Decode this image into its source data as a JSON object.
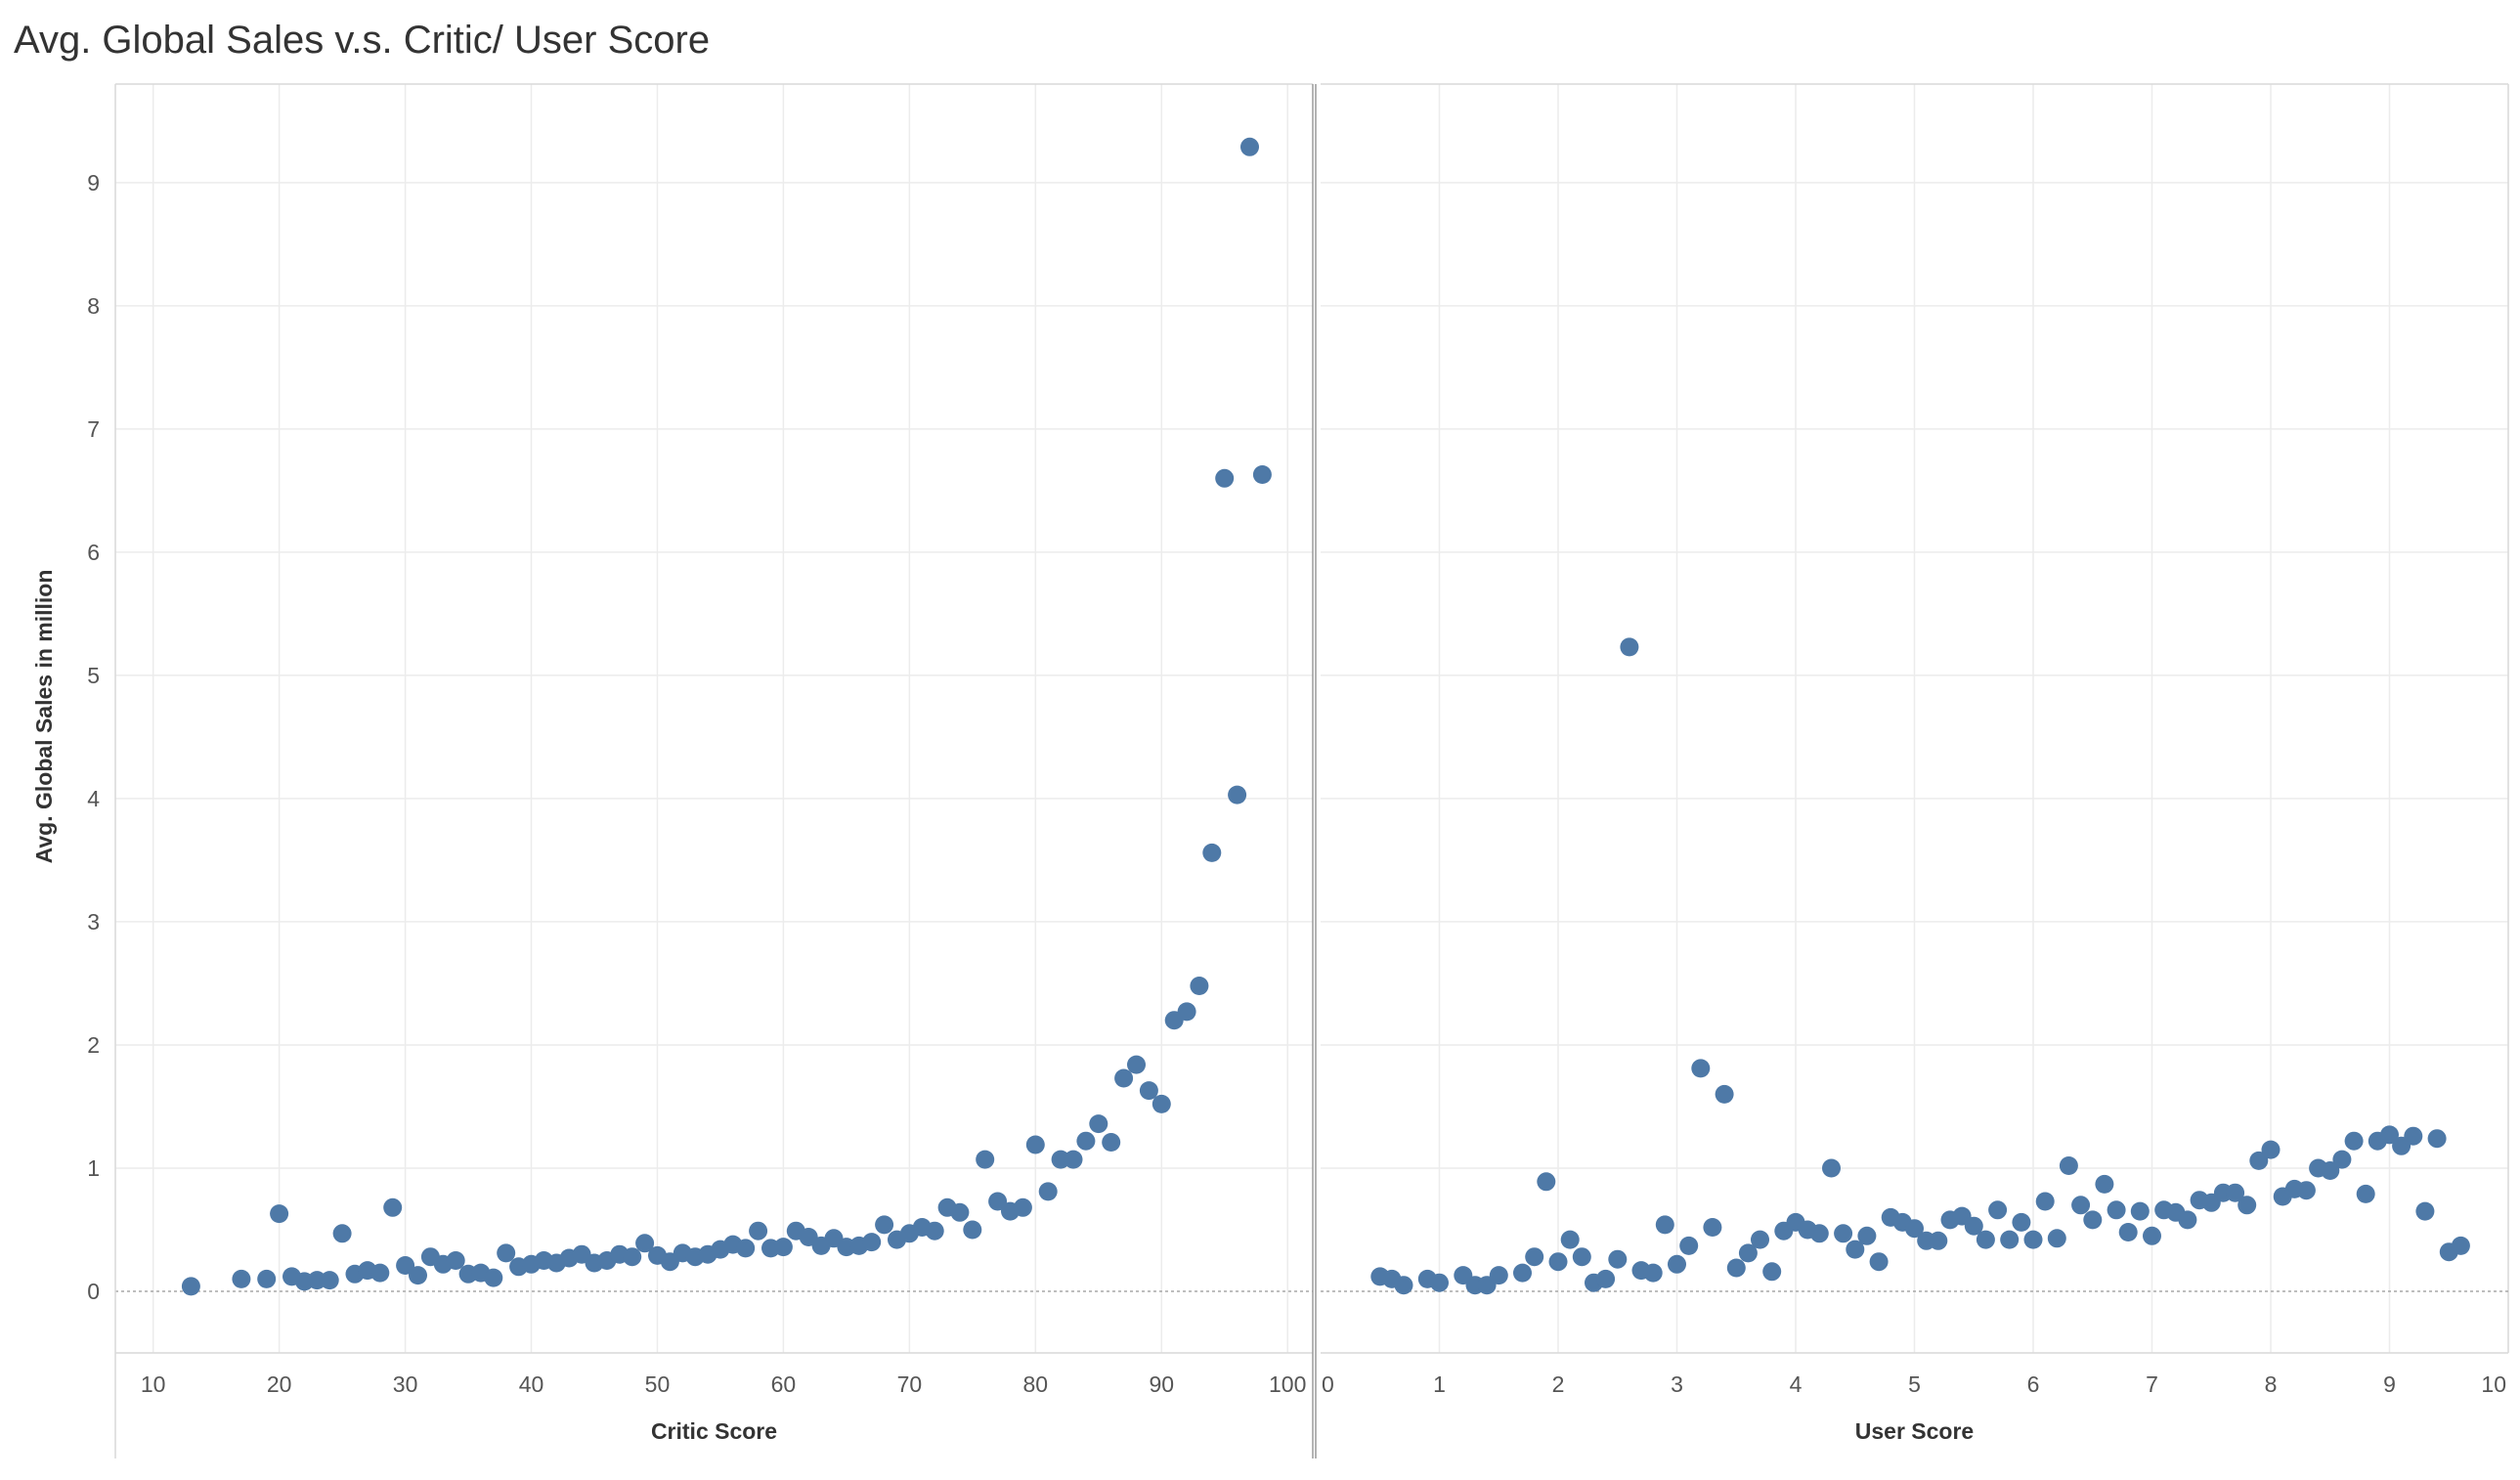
{
  "page": {
    "title": "Avg. Global Sales v.s. Critic/ User Score"
  },
  "style": {
    "point_color": "#4e79a7",
    "grid_color": "#ececec"
  },
  "chart_data": [
    {
      "type": "scatter",
      "name": "critic",
      "title": "Avg. Global Sales v.s. Critic/ User Score",
      "xlabel": "Critic Score",
      "ylabel": "Avg. Global Sales in million",
      "xlim": [
        7,
        102
      ],
      "ylim": [
        -0.5,
        9.8
      ],
      "xticks": [
        10,
        20,
        30,
        40,
        50,
        60,
        70,
        80,
        90,
        100
      ],
      "yticks": [
        0,
        1,
        2,
        3,
        4,
        5,
        6,
        7,
        8,
        9
      ],
      "grid": true,
      "x": [
        13,
        17,
        19,
        20,
        21,
        22,
        23,
        24,
        25,
        26,
        27,
        28,
        29,
        30,
        31,
        32,
        33,
        34,
        35,
        36,
        37,
        38,
        39,
        40,
        41,
        42,
        43,
        44,
        45,
        46,
        47,
        48,
        49,
        50,
        51,
        52,
        53,
        54,
        55,
        56,
        57,
        58,
        59,
        60,
        61,
        62,
        63,
        64,
        65,
        66,
        67,
        68,
        69,
        70,
        71,
        72,
        73,
        74,
        75,
        76,
        77,
        78,
        79,
        80,
        81,
        82,
        83,
        84,
        85,
        86,
        87,
        88,
        89,
        90,
        91,
        92,
        93,
        94,
        95,
        96,
        97,
        98
      ],
      "y": [
        0.04,
        0.1,
        0.1,
        0.63,
        0.12,
        0.08,
        0.09,
        0.09,
        0.47,
        0.14,
        0.17,
        0.15,
        0.68,
        0.21,
        0.13,
        0.28,
        0.22,
        0.25,
        0.14,
        0.15,
        0.11,
        0.31,
        0.2,
        0.22,
        0.25,
        0.23,
        0.27,
        0.3,
        0.23,
        0.25,
        0.3,
        0.28,
        0.39,
        0.29,
        0.24,
        0.31,
        0.28,
        0.3,
        0.34,
        0.38,
        0.35,
        0.49,
        0.35,
        0.36,
        0.49,
        0.44,
        0.37,
        0.43,
        0.36,
        0.37,
        0.4,
        0.54,
        0.42,
        0.47,
        0.52,
        0.49,
        0.68,
        0.64,
        0.5,
        1.07,
        0.73,
        0.65,
        0.68,
        1.19,
        0.81,
        1.07,
        1.07,
        1.22,
        1.36,
        1.21,
        1.73,
        1.84,
        1.63,
        1.52,
        2.2,
        2.27,
        2.48,
        3.56,
        6.6,
        4.03,
        9.29,
        6.63
      ]
    },
    {
      "type": "scatter",
      "name": "user",
      "xlabel": "User Score",
      "ylabel": "",
      "xlim": [
        0,
        10
      ],
      "ylim": [
        -0.5,
        9.8
      ],
      "xticks": [
        0,
        1,
        2,
        3,
        4,
        5,
        6,
        7,
        8,
        9,
        10
      ],
      "yticks": [
        0,
        1,
        2,
        3,
        4,
        5,
        6,
        7,
        8,
        9
      ],
      "grid": true,
      "x": [
        0.5,
        0.6,
        0.7,
        0.9,
        1.0,
        1.2,
        1.3,
        1.4,
        1.5,
        1.7,
        1.8,
        1.9,
        2.0,
        2.1,
        2.2,
        2.3,
        2.4,
        2.5,
        2.6,
        2.7,
        2.8,
        2.9,
        3.0,
        3.1,
        3.2,
        3.3,
        3.4,
        3.5,
        3.6,
        3.7,
        3.8,
        3.9,
        4.0,
        4.1,
        4.2,
        4.3,
        4.4,
        4.5,
        4.6,
        4.7,
        4.8,
        4.9,
        5.0,
        5.1,
        5.2,
        5.3,
        5.4,
        5.5,
        5.6,
        5.7,
        5.8,
        5.9,
        6.0,
        6.1,
        6.2,
        6.3,
        6.4,
        6.5,
        6.6,
        6.7,
        6.8,
        6.9,
        7.0,
        7.1,
        7.2,
        7.3,
        7.4,
        7.5,
        7.6,
        7.7,
        7.8,
        7.9,
        8.0,
        8.1,
        8.2,
        8.3,
        8.4,
        8.5,
        8.6,
        8.7,
        8.8,
        8.9,
        9.0,
        9.1,
        9.2,
        9.3,
        9.4,
        9.5,
        9.6
      ],
      "y": [
        0.12,
        0.1,
        0.05,
        0.1,
        0.07,
        0.13,
        0.05,
        0.05,
        0.13,
        0.15,
        0.28,
        0.89,
        0.24,
        0.42,
        0.28,
        0.07,
        0.1,
        0.26,
        5.23,
        0.17,
        0.15,
        0.54,
        0.22,
        0.37,
        1.81,
        0.52,
        1.6,
        0.19,
        0.31,
        0.42,
        0.16,
        0.49,
        0.56,
        0.5,
        0.47,
        1.0,
        0.47,
        0.34,
        0.45,
        0.24,
        0.6,
        0.56,
        0.51,
        0.41,
        0.41,
        0.58,
        0.61,
        0.53,
        0.42,
        0.66,
        0.42,
        0.56,
        0.42,
        0.73,
        0.43,
        1.02,
        0.7,
        0.58,
        0.87,
        0.66,
        0.48,
        0.65,
        0.45,
        0.66,
        0.64,
        0.58,
        0.74,
        0.72,
        0.8,
        0.8,
        0.7,
        1.06,
        1.15,
        0.77,
        0.83,
        0.82,
        1.0,
        0.98,
        1.07,
        1.22,
        0.79,
        1.22,
        1.27,
        1.18,
        1.26,
        0.65,
        1.24,
        0.32,
        0.37
      ]
    }
  ]
}
